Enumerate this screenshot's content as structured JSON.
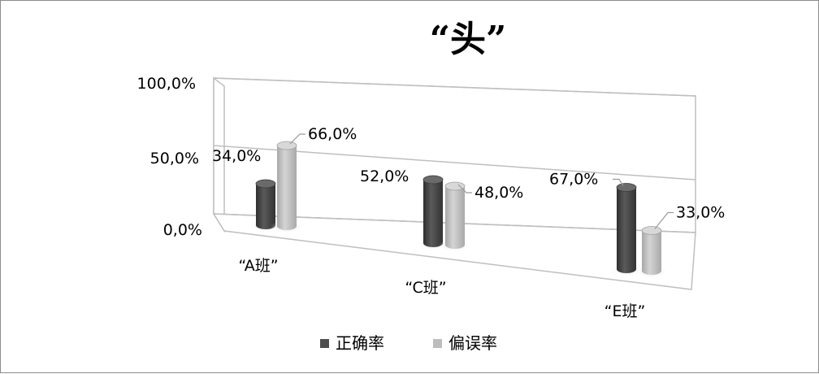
{
  "chart_data": {
    "type": "bar",
    "title": "“头”",
    "categories": [
      "“A班”",
      "“C班”",
      "“E班”"
    ],
    "series": [
      {
        "name": "正确率",
        "values": [
          34.0,
          52.0,
          67.0
        ],
        "labels": [
          "34,0%",
          "52,0%",
          "67,0%"
        ],
        "color": "#4d4d4d"
      },
      {
        "name": "偏误率",
        "values": [
          66.0,
          48.0,
          33.0
        ],
        "labels": [
          "66,0%",
          "48,0%",
          "33,0%"
        ],
        "color": "#bdbdbd"
      }
    ],
    "yticks": [
      "0,0%",
      "50,0%",
      "100,0%"
    ],
    "ylim": [
      0,
      100
    ],
    "grid": true,
    "legend": "bottom",
    "three_d": true
  }
}
